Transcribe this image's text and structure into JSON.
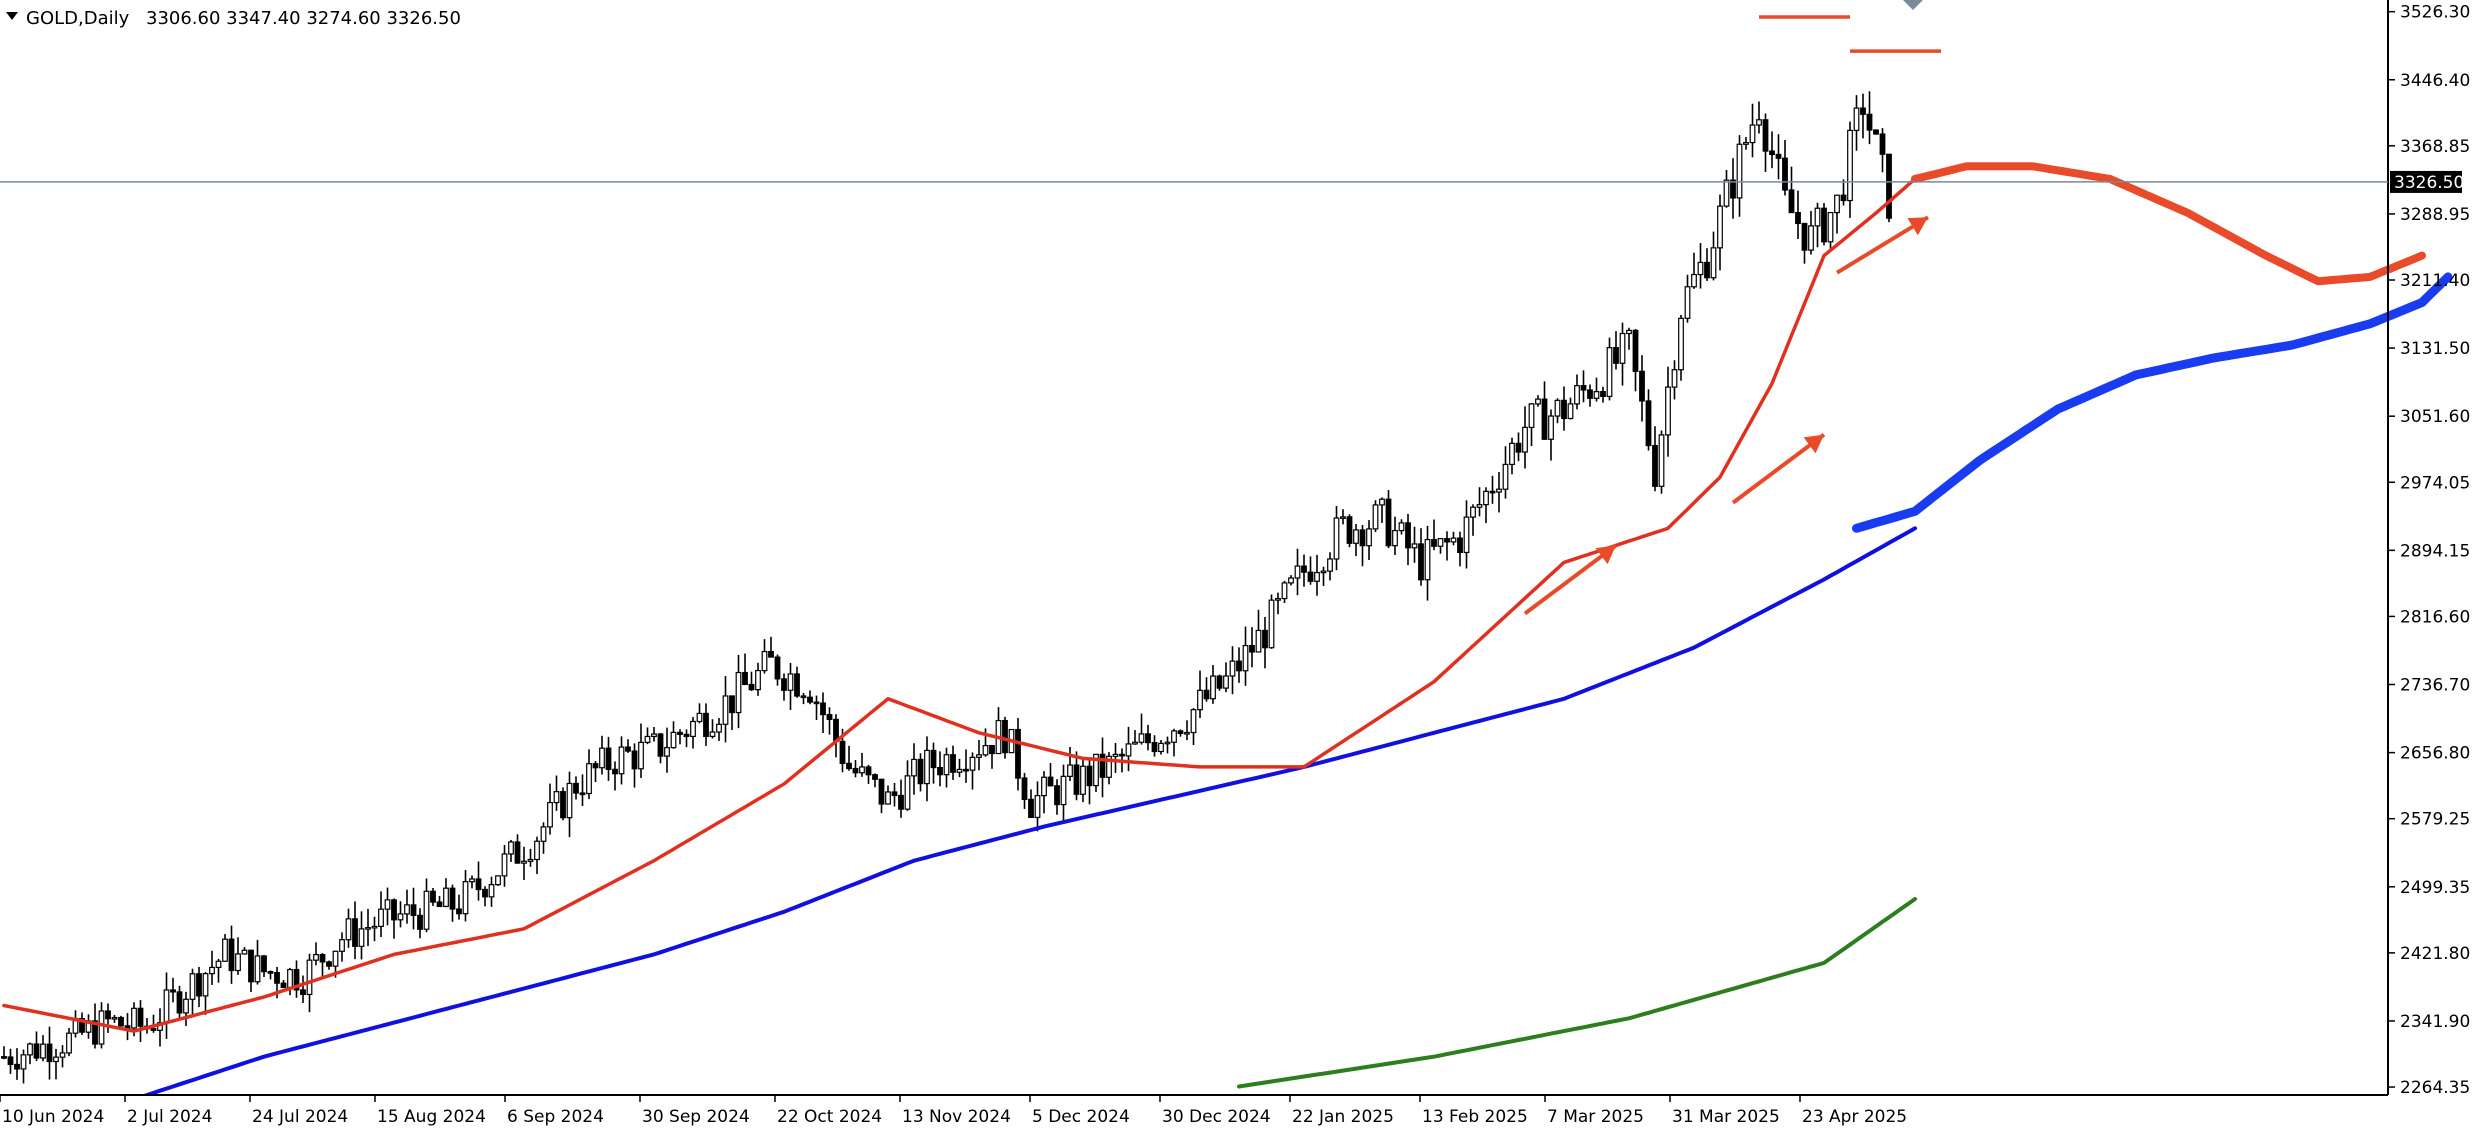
{
  "header": {
    "symbol": "GOLD,Daily",
    "ohlc": "3306.60 3347.40 3274.60 3326.50"
  },
  "chart_data": {
    "type": "candlestick",
    "price_axis": {
      "ticks": [
        "3526.30",
        "3446.40",
        "3368.85",
        "3288.95",
        "3211.40",
        "3131.50",
        "3051.60",
        "2974.05",
        "2894.15",
        "2816.60",
        "2736.70",
        "2656.80",
        "2579.25",
        "2499.35",
        "2421.80",
        "2341.90",
        "2264.35"
      ],
      "range": [
        2255,
        3540
      ]
    },
    "date_axis": {
      "ticks": [
        "10 Jun 2024",
        "2 Jul 2024",
        "24 Jul 2024",
        "15 Aug 2024",
        "6 Sep 2024",
        "30 Sep 2024",
        "22 Oct 2024",
        "13 Nov 2024",
        "5 Dec 2024",
        "30 Dec 2024",
        "22 Jan 2025",
        "13 Feb 2025",
        "7 Mar 2025",
        "31 Mar 2025",
        "23 Apr 2025"
      ]
    },
    "current_price": 3326.5,
    "current_price_label": "3326.50",
    "trend_points": [
      [
        0,
        2300
      ],
      [
        10,
        2320
      ],
      [
        16,
        2340
      ],
      [
        22,
        2335
      ],
      [
        28,
        2380
      ],
      [
        34,
        2420
      ],
      [
        40,
        2400
      ],
      [
        46,
        2395
      ],
      [
        52,
        2440
      ],
      [
        58,
        2460
      ],
      [
        64,
        2470
      ],
      [
        70,
        2480
      ],
      [
        76,
        2520
      ],
      [
        82,
        2560
      ],
      [
        88,
        2620
      ],
      [
        94,
        2650
      ],
      [
        100,
        2660
      ],
      [
        106,
        2690
      ],
      [
        112,
        2720
      ],
      [
        118,
        2760
      ],
      [
        124,
        2735
      ],
      [
        130,
        2640
      ],
      [
        136,
        2600
      ],
      [
        142,
        2640
      ],
      [
        148,
        2660
      ],
      [
        154,
        2680
      ],
      [
        158,
        2600
      ],
      [
        164,
        2620
      ],
      [
        170,
        2640
      ],
      [
        176,
        2670
      ],
      [
        182,
        2700
      ],
      [
        188,
        2740
      ],
      [
        194,
        2800
      ],
      [
        200,
        2870
      ],
      [
        206,
        2920
      ],
      [
        212,
        2930
      ],
      [
        218,
        2880
      ],
      [
        224,
        2910
      ],
      [
        228,
        2960
      ],
      [
        234,
        3040
      ],
      [
        240,
        3060
      ],
      [
        246,
        3100
      ],
      [
        250,
        3130
      ],
      [
        254,
        2990
      ],
      [
        258,
        3180
      ],
      [
        262,
        3240
      ],
      [
        266,
        3330
      ],
      [
        270,
        3420
      ],
      [
        274,
        3300
      ],
      [
        278,
        3260
      ],
      [
        282,
        3300
      ],
      [
        286,
        3420
      ],
      [
        290,
        3306
      ]
    ],
    "sma_red_points": [
      [
        0,
        2360
      ],
      [
        20,
        2330
      ],
      [
        40,
        2370
      ],
      [
        60,
        2420
      ],
      [
        80,
        2450
      ],
      [
        100,
        2530
      ],
      [
        120,
        2620
      ],
      [
        136,
        2720
      ],
      [
        150,
        2680
      ],
      [
        166,
        2650
      ],
      [
        184,
        2640
      ],
      [
        200,
        2640
      ],
      [
        220,
        2740
      ],
      [
        240,
        2880
      ],
      [
        256,
        2920
      ],
      [
        264,
        2980
      ],
      [
        272,
        3090
      ],
      [
        280,
        3240
      ],
      [
        288,
        3290
      ],
      [
        294,
        3330
      ]
    ],
    "sma_blue_points": [
      [
        0,
        2220
      ],
      [
        20,
        2250
      ],
      [
        40,
        2300
      ],
      [
        60,
        2340
      ],
      [
        80,
        2380
      ],
      [
        100,
        2420
      ],
      [
        120,
        2470
      ],
      [
        140,
        2530
      ],
      [
        160,
        2570
      ],
      [
        180,
        2605
      ],
      [
        200,
        2640
      ],
      [
        220,
        2680
      ],
      [
        240,
        2720
      ],
      [
        260,
        2780
      ],
      [
        280,
        2860
      ],
      [
        294,
        2920
      ]
    ],
    "sma_green_points": [
      [
        190,
        2265
      ],
      [
        220,
        2300
      ],
      [
        250,
        2345
      ],
      [
        280,
        2410
      ],
      [
        294,
        2485
      ]
    ],
    "projection_red_points": [
      [
        294,
        3330
      ],
      [
        302,
        3345
      ],
      [
        312,
        3345
      ],
      [
        324,
        3330
      ],
      [
        336,
        3290
      ],
      [
        348,
        3240
      ],
      [
        356,
        3210
      ],
      [
        364,
        3215
      ],
      [
        372,
        3240
      ]
    ],
    "projection_blue_points": [
      [
        285,
        2920
      ],
      [
        294,
        2940
      ],
      [
        304,
        3000
      ],
      [
        316,
        3060
      ],
      [
        328,
        3100
      ],
      [
        340,
        3120
      ],
      [
        352,
        3135
      ],
      [
        364,
        3160
      ],
      [
        372,
        3185
      ],
      [
        376,
        3215
      ]
    ],
    "resistance_lines": [
      {
        "from": [
          270,
          3520
        ],
        "to": [
          284,
          3520
        ]
      },
      {
        "from": [
          284,
          3480
        ],
        "to": [
          298,
          3480
        ]
      }
    ],
    "arrows": [
      {
        "from": [
          234,
          2820
        ],
        "to": [
          248,
          2900
        ]
      },
      {
        "from": [
          266,
          2950
        ],
        "to": [
          280,
          3030
        ]
      },
      {
        "from": [
          282,
          3220
        ],
        "to": [
          296,
          3285
        ]
      }
    ]
  }
}
